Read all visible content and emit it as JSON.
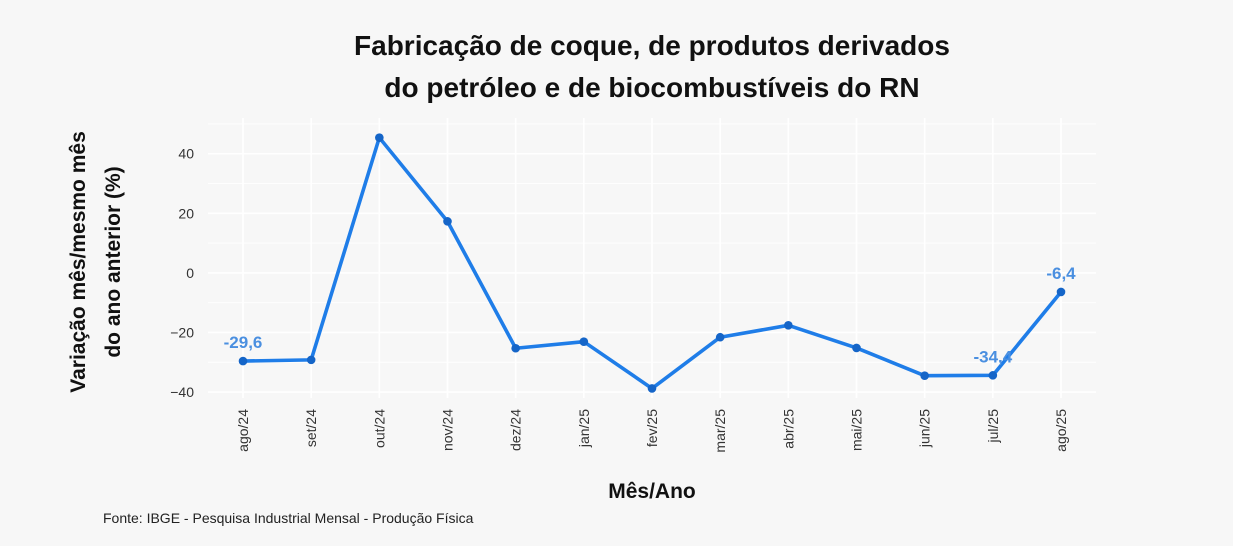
{
  "chart_data": {
    "type": "line",
    "title_lines": [
      "Fabricação de coque, de produtos derivados",
      "do petróleo e de biocombustíveis do RN"
    ],
    "xlabel": "Mês/Ano",
    "ylabel_lines": [
      "Variação mês/mesmo mês",
      "do ano anterior (%)"
    ],
    "categories": [
      "ago/24",
      "set/24",
      "out/24",
      "nov/24",
      "dez/24",
      "jan/25",
      "fev/25",
      "mar/25",
      "abr/25",
      "mai/25",
      "jun/25",
      "jul/25",
      "ago/25"
    ],
    "values": [
      -29.6,
      -29.2,
      45.4,
      17.3,
      -25.3,
      -23.1,
      -38.8,
      -21.6,
      -17.6,
      -25.2,
      -34.5,
      -34.4,
      -6.4
    ],
    "ylim": [
      -42,
      52
    ],
    "yticks": [
      40,
      20,
      0,
      -20,
      -40
    ],
    "ytick_labels": [
      "40",
      "20",
      "0",
      "−20",
      "−40"
    ],
    "grid": true,
    "line_color": "#1f7de8",
    "label_color": "#4a8fe0",
    "data_labels": [
      {
        "index": 0,
        "text": "-29,6"
      },
      {
        "index": 11,
        "text": "-34,4"
      },
      {
        "index": 12,
        "text": "-6,4"
      }
    ]
  },
  "source": "Fonte: IBGE - Pesquisa Industrial Mensal - Produção Física"
}
